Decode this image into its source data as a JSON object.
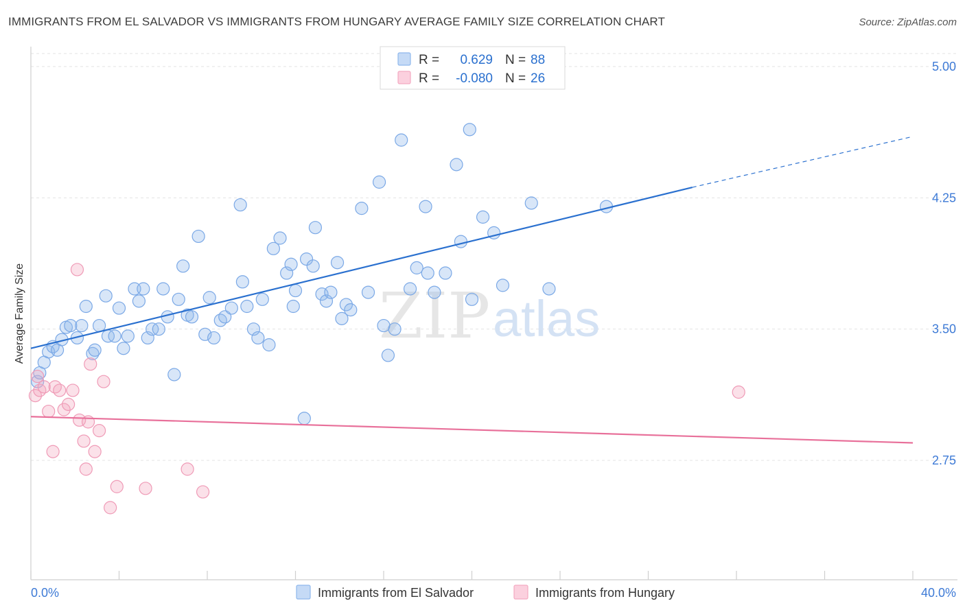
{
  "title": "IMMIGRANTS FROM EL SALVADOR VS IMMIGRANTS FROM HUNGARY AVERAGE FAMILY SIZE CORRELATION CHART",
  "source": "Source: ZipAtlas.com",
  "watermark": {
    "zip": "ZIP",
    "atlas": "atlas"
  },
  "colors": {
    "blue": "#8fb8ec",
    "blue_line": "#2a70cf",
    "pink": "#f3a9c1",
    "pink_line": "#e8709a",
    "tick_text": "#3d7ad6"
  },
  "chart_data": {
    "type": "scatter",
    "title": "IMMIGRANTS FROM EL SALVADOR VS IMMIGRANTS FROM HUNGARY AVERAGE FAMILY SIZE CORRELATION CHART",
    "xlabel": "",
    "ylabel": "Average Family Size",
    "xlim": [
      0,
      40
    ],
    "ylim": [
      2.2,
      5.15
    ],
    "x_tick_labels": [
      "0.0%",
      "40.0%"
    ],
    "y_ticks": [
      2.75,
      3.5,
      4.25,
      5.0
    ],
    "y_tick_labels": [
      "2.75",
      "3.50",
      "4.25",
      "5.00"
    ],
    "grid": "horizontal dashed",
    "legend_position": "top-center",
    "stats": [
      {
        "r_label": "R =",
        "r_value": "0.629",
        "n_label": "N =",
        "n_value": "88"
      },
      {
        "r_label": "R =",
        "r_value": "-0.080",
        "n_label": "N =",
        "n_value": "26"
      }
    ],
    "series": [
      {
        "name": "Immigrants from El Salvador",
        "color": "#8fb8ec",
        "trend": {
          "x": [
            0,
            30
          ],
          "y": [
            3.39,
            4.31
          ],
          "dashed_to_x": 40,
          "dashed_y": 4.6
        },
        "points": [
          [
            0.3,
            3.2
          ],
          [
            0.4,
            3.25
          ],
          [
            0.6,
            3.31
          ],
          [
            0.8,
            3.37
          ],
          [
            1.0,
            3.4
          ],
          [
            1.2,
            3.38
          ],
          [
            1.4,
            3.44
          ],
          [
            1.6,
            3.51
          ],
          [
            1.8,
            3.52
          ],
          [
            2.1,
            3.45
          ],
          [
            2.3,
            3.52
          ],
          [
            2.5,
            3.63
          ],
          [
            2.8,
            3.36
          ],
          [
            2.9,
            3.38
          ],
          [
            3.1,
            3.52
          ],
          [
            3.4,
            3.69
          ],
          [
            3.5,
            3.46
          ],
          [
            3.8,
            3.46
          ],
          [
            4.0,
            3.62
          ],
          [
            4.2,
            3.39
          ],
          [
            4.4,
            3.46
          ],
          [
            4.7,
            3.73
          ],
          [
            4.9,
            3.66
          ],
          [
            5.1,
            3.73
          ],
          [
            5.3,
            3.45
          ],
          [
            5.5,
            3.5
          ],
          [
            5.8,
            3.5
          ],
          [
            6.0,
            3.73
          ],
          [
            6.2,
            3.57
          ],
          [
            6.5,
            3.24
          ],
          [
            6.7,
            3.67
          ],
          [
            6.9,
            3.86
          ],
          [
            7.1,
            3.58
          ],
          [
            7.3,
            3.57
          ],
          [
            7.6,
            4.03
          ],
          [
            7.9,
            3.47
          ],
          [
            8.1,
            3.68
          ],
          [
            8.3,
            3.45
          ],
          [
            8.6,
            3.55
          ],
          [
            8.8,
            3.57
          ],
          [
            9.1,
            3.62
          ],
          [
            9.5,
            4.21
          ],
          [
            9.6,
            3.77
          ],
          [
            9.8,
            3.63
          ],
          [
            10.1,
            3.5
          ],
          [
            10.3,
            3.45
          ],
          [
            10.5,
            3.67
          ],
          [
            10.8,
            3.41
          ],
          [
            11.0,
            3.96
          ],
          [
            11.3,
            4.02
          ],
          [
            11.6,
            3.82
          ],
          [
            11.8,
            3.87
          ],
          [
            11.9,
            3.63
          ],
          [
            12.0,
            3.72
          ],
          [
            12.4,
            2.99
          ],
          [
            12.5,
            3.9
          ],
          [
            12.8,
            3.86
          ],
          [
            12.9,
            4.08
          ],
          [
            13.2,
            3.7
          ],
          [
            13.4,
            3.66
          ],
          [
            13.6,
            3.71
          ],
          [
            13.9,
            3.88
          ],
          [
            14.1,
            3.56
          ],
          [
            14.3,
            3.64
          ],
          [
            14.5,
            3.61
          ],
          [
            15.0,
            4.19
          ],
          [
            15.3,
            3.71
          ],
          [
            15.8,
            4.34
          ],
          [
            16.0,
            3.52
          ],
          [
            16.2,
            3.35
          ],
          [
            16.5,
            3.5
          ],
          [
            16.8,
            4.58
          ],
          [
            17.2,
            3.73
          ],
          [
            17.5,
            3.85
          ],
          [
            17.9,
            4.2
          ],
          [
            18.0,
            3.82
          ],
          [
            18.3,
            3.71
          ],
          [
            18.8,
            3.82
          ],
          [
            19.3,
            4.44
          ],
          [
            19.5,
            4.0
          ],
          [
            19.9,
            4.64
          ],
          [
            20.0,
            3.67
          ],
          [
            20.5,
            4.14
          ],
          [
            21.0,
            4.05
          ],
          [
            21.4,
            3.75
          ],
          [
            22.7,
            4.22
          ],
          [
            23.5,
            3.73
          ],
          [
            26.1,
            4.2
          ]
        ]
      },
      {
        "name": "Immigrants from Hungary",
        "color": "#f3a9c1",
        "trend": {
          "x": [
            0,
            40
          ],
          "y": [
            3.0,
            2.85
          ]
        },
        "points": [
          [
            0.2,
            3.12
          ],
          [
            0.4,
            3.15
          ],
          [
            0.6,
            3.17
          ],
          [
            0.8,
            3.03
          ],
          [
            1.0,
            2.8
          ],
          [
            1.1,
            3.17
          ],
          [
            1.3,
            3.15
          ],
          [
            1.5,
            3.04
          ],
          [
            1.7,
            3.07
          ],
          [
            1.9,
            3.15
          ],
          [
            2.1,
            3.84
          ],
          [
            2.2,
            2.98
          ],
          [
            2.4,
            2.86
          ],
          [
            2.5,
            2.7
          ],
          [
            2.6,
            2.97
          ],
          [
            2.7,
            3.3
          ],
          [
            2.9,
            2.8
          ],
          [
            3.1,
            2.92
          ],
          [
            3.3,
            3.2
          ],
          [
            3.6,
            2.48
          ],
          [
            3.9,
            2.6
          ],
          [
            5.2,
            2.59
          ],
          [
            7.1,
            2.7
          ],
          [
            7.8,
            2.57
          ],
          [
            32.1,
            3.14
          ],
          [
            0.3,
            3.23
          ]
        ]
      }
    ]
  }
}
